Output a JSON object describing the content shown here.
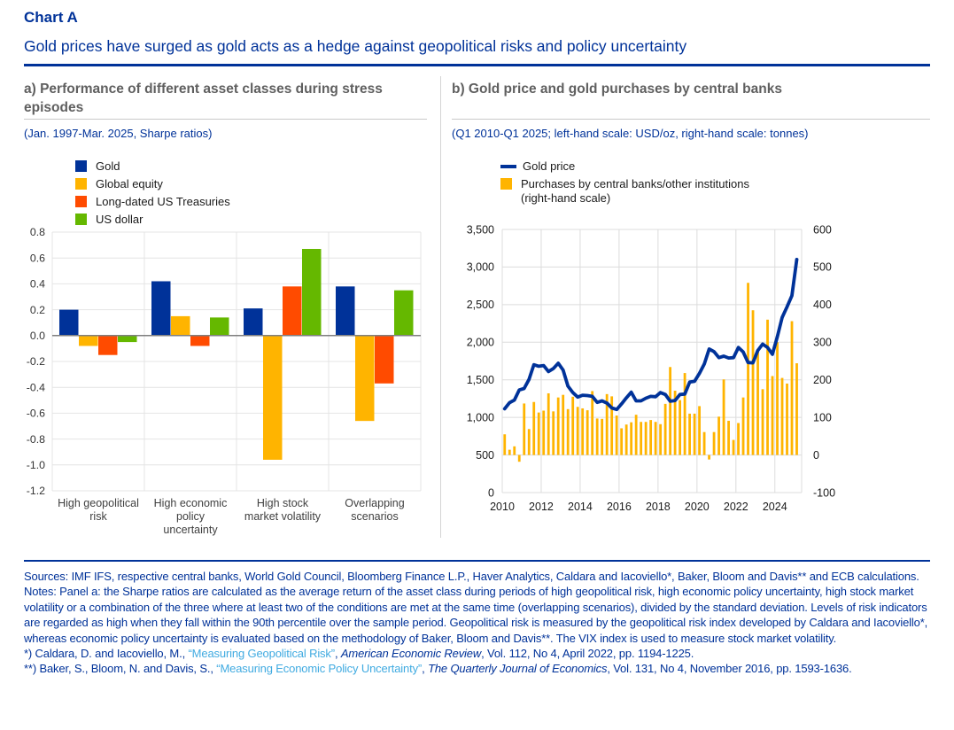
{
  "page": {
    "kicker": "Chart A",
    "title": "Gold prices have surged as gold acts as a hedge against geopolitical risks and policy uncertainty"
  },
  "colors": {
    "brand_blue": "#003299",
    "amber": "#FFB400",
    "orange_red": "#FF4B00",
    "green": "#65B800",
    "header_gray": "#5f5f5f",
    "link_blue": "#41abe1",
    "grid_gray": "#e4e4e4",
    "zero_line_gray": "#7f7f7f",
    "axis_text": "#333333"
  },
  "panel_a": {
    "title": "a) Performance of different asset classes during stress episodes",
    "subtitle": "(Jan. 1997-Mar. 2025, Sharpe ratios)"
  },
  "panel_b": {
    "title": "b) Gold price and gold purchases by central banks",
    "subtitle": "(Q1 2010-Q1 2025; left-hand scale: USD/oz, right-hand scale: tonnes)",
    "legend_line1": "Gold price",
    "legend_line2a": "Purchases by central banks/other institutions",
    "legend_line2b": "(right-hand scale)"
  },
  "chart_data": [
    {
      "type": "bar",
      "title": "Performance of different asset classes during stress episodes",
      "subtitle": "Jan. 1997-Mar. 2025, Sharpe ratios",
      "categories": [
        "High geopolitical risk",
        "High economic policy uncertainty",
        "High stock market volatility",
        "Overlapping scenarios"
      ],
      "category_lines": [
        [
          "High geopolitical",
          "risk"
        ],
        [
          "High economic",
          "policy",
          "uncertainty"
        ],
        [
          "High stock",
          "market volatility"
        ],
        [
          "Overlapping",
          "scenarios"
        ]
      ],
      "ylim": [
        -1.2,
        0.8
      ],
      "ytick_step": 0.2,
      "grid": true,
      "legend_position": "top-left",
      "series": [
        {
          "name": "Gold",
          "color": "#003299",
          "values": [
            0.2,
            0.42,
            0.21,
            0.38
          ]
        },
        {
          "name": "Global equity",
          "color": "#FFB400",
          "values": [
            -0.08,
            0.15,
            -0.96,
            -0.66
          ]
        },
        {
          "name": "Long-dated US Treasuries",
          "color": "#FF4B00",
          "values": [
            -0.15,
            -0.08,
            0.38,
            -0.37
          ]
        },
        {
          "name": "US dollar",
          "color": "#65B800",
          "values": [
            -0.05,
            0.14,
            0.67,
            0.35
          ]
        }
      ]
    },
    {
      "type": "line",
      "title": "Gold price and gold purchases by central banks",
      "subtitle": "Q1 2010-Q1 2025; left-hand scale: USD/oz, right-hand scale: tonnes",
      "x": [
        "Q1 2010",
        "Q2 2010",
        "Q3 2010",
        "Q4 2010",
        "Q1 2011",
        "Q2 2011",
        "Q3 2011",
        "Q4 2011",
        "Q1 2012",
        "Q2 2012",
        "Q3 2012",
        "Q4 2012",
        "Q1 2013",
        "Q2 2013",
        "Q3 2013",
        "Q4 2013",
        "Q1 2014",
        "Q2 2014",
        "Q3 2014",
        "Q4 2014",
        "Q1 2015",
        "Q2 2015",
        "Q3 2015",
        "Q4 2015",
        "Q1 2016",
        "Q2 2016",
        "Q3 2016",
        "Q4 2016",
        "Q1 2017",
        "Q2 2017",
        "Q3 2017",
        "Q4 2017",
        "Q1 2018",
        "Q2 2018",
        "Q3 2018",
        "Q4 2018",
        "Q1 2019",
        "Q2 2019",
        "Q3 2019",
        "Q4 2019",
        "Q1 2020",
        "Q2 2020",
        "Q3 2020",
        "Q4 2020",
        "Q1 2021",
        "Q2 2021",
        "Q3 2021",
        "Q4 2021",
        "Q1 2022",
        "Q2 2022",
        "Q3 2022",
        "Q4 2022",
        "Q1 2023",
        "Q2 2023",
        "Q3 2023",
        "Q4 2023",
        "Q1 2024",
        "Q2 2024",
        "Q3 2024",
        "Q4 2024",
        "Q1 2025"
      ],
      "xtick_labels": [
        "2010",
        "2012",
        "2014",
        "2016",
        "2018",
        "2020",
        "2022",
        "2024"
      ],
      "left_ylim": [
        0,
        3500
      ],
      "left_ytick_step": 500,
      "right_ylim": [
        -100,
        600
      ],
      "right_ytick_step": 100,
      "grid": true,
      "legend_position": "top-left",
      "series": [
        {
          "name": "Gold price",
          "render": "line",
          "axis": "left",
          "color": "#003299",
          "values": [
            1115,
            1195,
            1230,
            1365,
            1385,
            1505,
            1700,
            1680,
            1690,
            1610,
            1650,
            1720,
            1630,
            1415,
            1330,
            1270,
            1295,
            1290,
            1280,
            1200,
            1220,
            1190,
            1125,
            1105,
            1180,
            1260,
            1335,
            1220,
            1220,
            1255,
            1280,
            1275,
            1330,
            1305,
            1215,
            1225,
            1305,
            1310,
            1470,
            1480,
            1585,
            1710,
            1910,
            1875,
            1795,
            1815,
            1790,
            1795,
            1930,
            1870,
            1730,
            1725,
            1890,
            1975,
            1930,
            1840,
            2070,
            2330,
            2470,
            2620,
            3100
          ]
        },
        {
          "name": "Purchases by central banks/other institutions (right-hand scale)",
          "render": "bar",
          "axis": "right",
          "color": "#FFB400",
          "values": [
            55,
            14,
            23,
            -18,
            137,
            69,
            141,
            113,
            118,
            164,
            116,
            153,
            160,
            122,
            155,
            128,
            124,
            119,
            170,
            97,
            96,
            162,
            156,
            105,
            71,
            81,
            87,
            107,
            88,
            88,
            93,
            88,
            82,
            136,
            234,
            171,
            146,
            218,
            110,
            110,
            130,
            61,
            -12,
            61,
            102,
            201,
            91,
            40,
            85,
            153,
            458,
            385,
            280,
            175,
            360,
            210,
            300,
            205,
            190,
            356,
            244
          ]
        }
      ]
    }
  ],
  "footer": {
    "paragraphs": [
      [
        {
          "t": "Sources: IMF IFS, respective central banks, World Gold Council, Bloomberg Finance L.P., Haver Analytics, Caldara and Iacoviello*, Baker, Bloom and Davis** and ECB calculations.",
          "s": "n"
        }
      ],
      [
        {
          "t": "Notes: Panel a: the Sharpe ratios are calculated as the average return of the asset class during periods of high geopolitical risk, high economic policy uncertainty, high stock market volatility or a combination of the three where at least two of the conditions are met at the same time (overlapping scenarios), divided by the standard deviation. Levels of risk indicators are regarded as high when they fall within the 90th percentile over the sample period. Geopolitical risk is measured by the geopolitical risk index developed by Caldara and Iacoviello*, whereas economic policy uncertainty is evaluated based on the methodology of Baker, Bloom and Davis**. The VIX index is used to measure stock market volatility.",
          "s": "n"
        }
      ],
      [
        {
          "t": "*) Caldara, D. and Iacoviello, M., ",
          "s": "n"
        },
        {
          "t": "“Measuring Geopolitical Risk”",
          "s": "l"
        },
        {
          "t": ", ",
          "s": "n"
        },
        {
          "t": "American Economic Review",
          "s": "i"
        },
        {
          "t": ", Vol. 112, No 4, April 2022, pp. 1194-1225.",
          "s": "n"
        }
      ],
      [
        {
          "t": "**) Baker, S., Bloom, N. and Davis, S., ",
          "s": "n"
        },
        {
          "t": "“Measuring Economic Policy Uncertainty”",
          "s": "l"
        },
        {
          "t": ", ",
          "s": "n"
        },
        {
          "t": "The Quarterly Journal of Economics",
          "s": "i"
        },
        {
          "t": ", Vol. 131, No 4, November 2016, pp. 1593-1636.",
          "s": "n"
        }
      ]
    ]
  }
}
